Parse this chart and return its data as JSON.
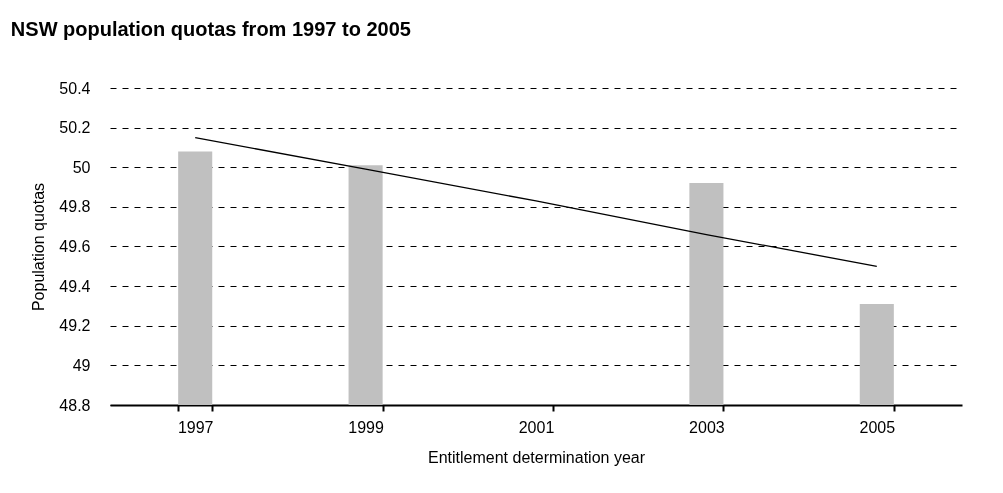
{
  "chart_data": {
    "type": "bar",
    "title": "NSW population quotas from 1997 to 2005",
    "xlabel": "Entitlement determination year",
    "ylabel": "Population quotas",
    "categories": [
      "1997",
      "1999",
      "2001",
      "2003",
      "2005"
    ],
    "series": [
      {
        "color": "#c0c0c0",
        "values": [
          50.08,
          50.01,
          null,
          49.92,
          49.31
        ]
      },
      {
        "type": "line",
        "color": "#000000",
        "values": [
          50.15,
          49.99,
          49.83,
          49.66,
          49.5
        ]
      }
    ],
    "ylim": [
      48.8,
      50.4
    ],
    "yticks": [
      48.8,
      49,
      49.2,
      49.4,
      49.6,
      49.8,
      50,
      50.2,
      50.4
    ],
    "grid": "y"
  }
}
